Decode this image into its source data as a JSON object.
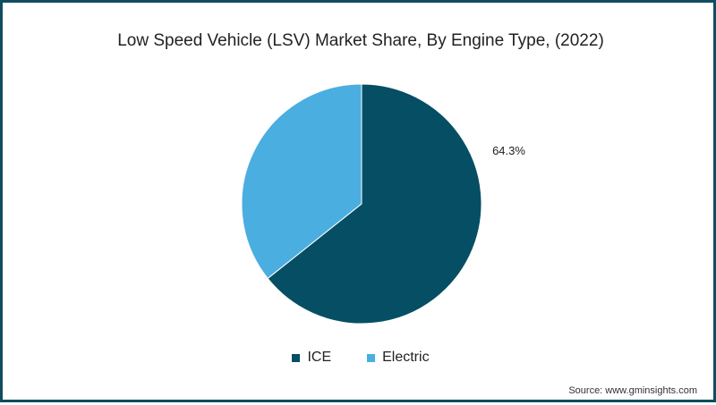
{
  "chart_data": {
    "type": "pie",
    "title": "Low Speed Vehicle (LSV) Market Share, By Engine Type, (2022)",
    "slices": [
      {
        "name": "ICE",
        "value": 64.3,
        "color": "#064e63",
        "label": "64.3%"
      },
      {
        "name": "Electric",
        "value": 35.7,
        "color": "#4aaee0",
        "label": ""
      }
    ],
    "legend_position": "bottom"
  },
  "source": "Source: www.gminsights.com"
}
